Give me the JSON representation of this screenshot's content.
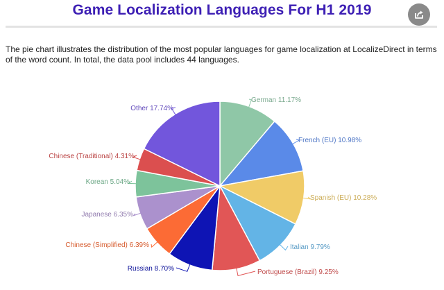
{
  "page": {
    "title": "Game Localization Languages For H1 2019",
    "description": "The pie chart illustrates the distribution of the most popular languages for game localization at LocalizeDirect in terms of the word count. In total, the data pool includes 44 languages.",
    "share_icon": "share-icon",
    "share_color": "#8a8a8a",
    "title_color": "#3d1fb4"
  },
  "chart_data": {
    "type": "pie",
    "title": "",
    "unit": "%",
    "slices": [
      {
        "label": "German",
        "value": 11.17,
        "display": "German 11.17%",
        "color": "#8fc7a7"
      },
      {
        "label": "French (EU)",
        "value": 10.98,
        "display": "French (EU) 10.98%",
        "color": "#5a8ae8"
      },
      {
        "label": "Spanish (EU)",
        "value": 10.28,
        "display": "Spanish (EU) 10.28%",
        "color": "#f0cb67"
      },
      {
        "label": "Italian",
        "value": 9.79,
        "display": "Italian 9.79%",
        "color": "#63b4e6"
      },
      {
        "label": "Portuguese (Brazil)",
        "value": 9.25,
        "display": "Portuguese (Brazil) 9.25%",
        "color": "#e15656"
      },
      {
        "label": "Russian",
        "value": 8.7,
        "display": "Russian 8.70%",
        "color": "#0e14b4"
      },
      {
        "label": "Chinese (Simplified)",
        "value": 6.39,
        "display": "Chinese (Simplified) 6.39%",
        "color": "#fc6b35"
      },
      {
        "label": "Japanese",
        "value": 6.35,
        "display": "Japanese 6.35%",
        "color": "#ab91cd"
      },
      {
        "label": "Korean",
        "value": 5.04,
        "display": "Korean 5.04%",
        "color": "#7dc39b"
      },
      {
        "label": "Chinese (Traditional)",
        "value": 4.31,
        "display": "Chinese (Traditional) 4.31%",
        "color": "#db4f4f"
      },
      {
        "label": "Other",
        "value": 17.74,
        "display": "Other 17.74%",
        "color": "#7256dc"
      }
    ],
    "start_angle": "12 o'clock",
    "direction": "clockwise",
    "legend": "none",
    "labels": "outside with leader lines"
  }
}
